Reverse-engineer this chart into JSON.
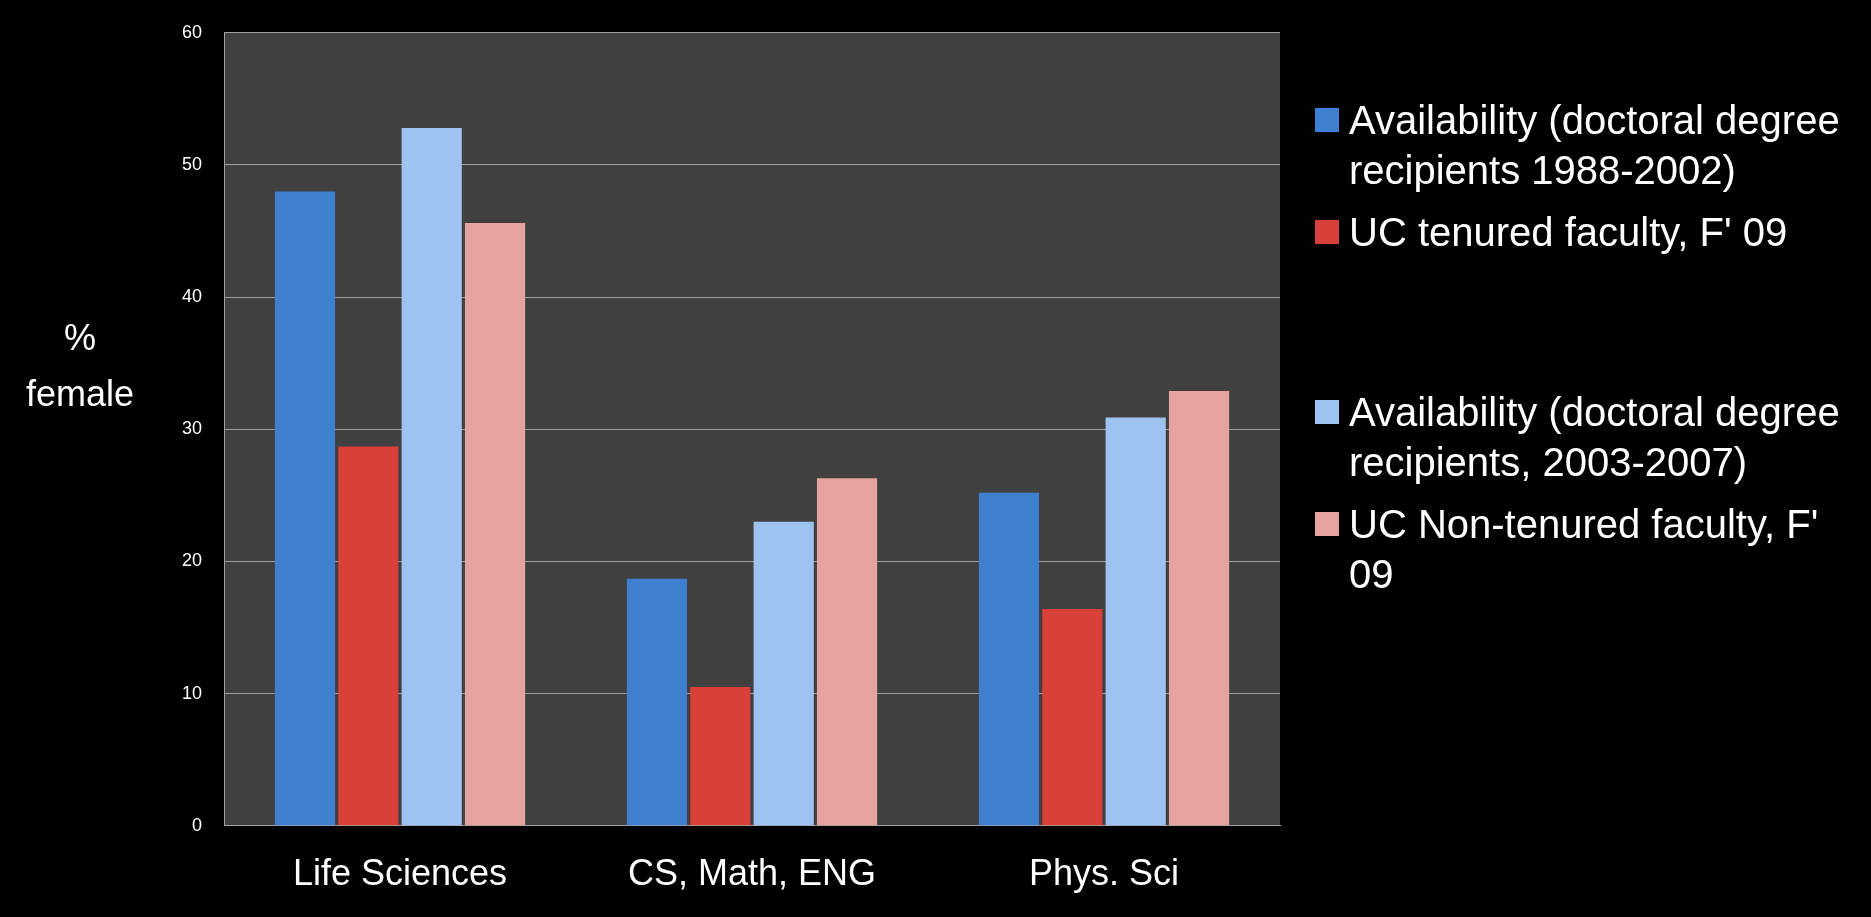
{
  "chart_data": {
    "type": "bar",
    "ylabel": "% female",
    "categories": [
      "Life Sciences",
      "CS, Math, ENG",
      "Phys. Sci"
    ],
    "series": [
      {
        "name": "Availability (doctoral degree recipients 1988-2002)",
        "color": "#3f7fd0",
        "values": [
          48,
          18.7,
          25.2
        ]
      },
      {
        "name": "UC tenured faculty, F' 09",
        "color": "#d8403a",
        "values": [
          28.7,
          10.5,
          16.4
        ]
      },
      {
        "name": "Availability (doctoral degree recipients, 2003-2007)",
        "color": "#9dc3f0",
        "values": [
          52.8,
          23,
          30.9
        ]
      },
      {
        "name": "UC Non-tenured faculty, F' 09",
        "color": "#e6a3a0",
        "values": [
          45.6,
          26.3,
          32.9
        ]
      }
    ],
    "ylim": [
      0,
      60
    ],
    "yticks": [
      0,
      10,
      20,
      30,
      40,
      50,
      60
    ],
    "grid": "y",
    "legend": "right"
  }
}
